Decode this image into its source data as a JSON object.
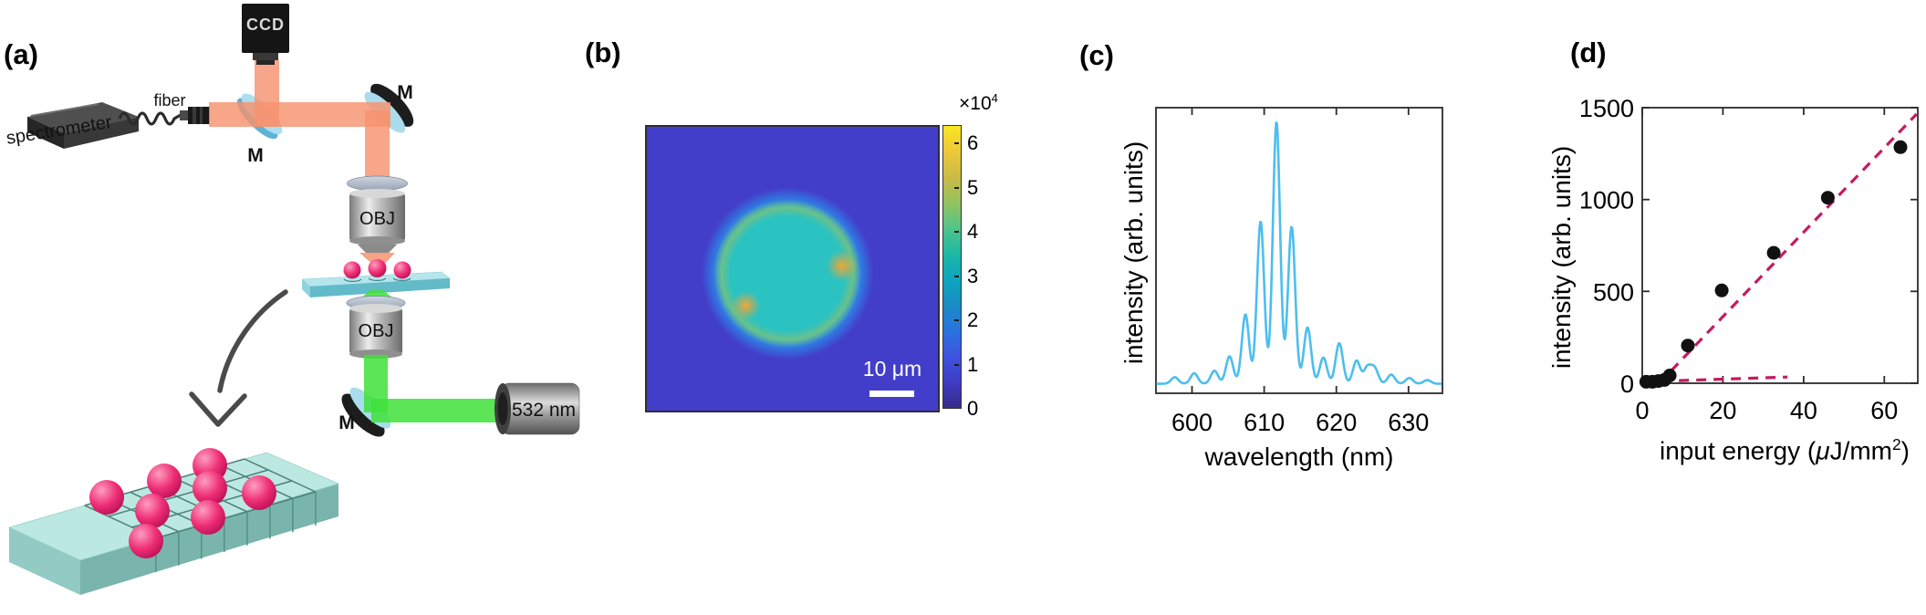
{
  "figure": {
    "background": "#ffffff",
    "panels": {
      "a_label": "(a)",
      "b_label": "(b)",
      "c_label": "(c)",
      "d_label": "(d)"
    }
  },
  "panel_a": {
    "labels": {
      "ccd": "CCD",
      "spectrometer": "spectrometer",
      "fiber": "fiber",
      "mirror_top": "M",
      "mirror_right": "M",
      "mirror_bottom": "M",
      "objective_top": "OBJ",
      "objective_bottom": "OBJ",
      "laser": "532 nm"
    },
    "colors": {
      "emission_beam_red": "#f6936f",
      "excitation_beam_green": "#3fe13a",
      "microsphere_pink": "#ee2e75",
      "substrate_teal": "#bce8e2",
      "focus_glow_orange": "#ffa333"
    }
  },
  "panel_b": {
    "scale_bar_label": "10 μm",
    "colorbar": {
      "multiplier": "×10",
      "exponent": "4",
      "ticks": [
        0,
        1,
        2,
        3,
        4,
        5,
        6
      ],
      "max": 6.42,
      "gradient": [
        "#352a87",
        "#3e3dc3",
        "#3f53e0",
        "#2a72de",
        "#188cc4",
        "#0da5bf",
        "#1cb8a6",
        "#50c48a",
        "#94c25f",
        "#cabb45",
        "#eec83a",
        "#f9e723"
      ]
    },
    "image": {
      "background": "#433ec9",
      "sphere": "#2bc2c2",
      "sphere_edge": "#38b6d2",
      "sphere_glow": "#2f7ce4",
      "ring": "rgba(150,205,70,0.5)",
      "hotspot": "rgba(250,165,45,0.95)"
    }
  },
  "chart_data": [
    {
      "id": "lasing-spectrum",
      "type": "line",
      "title": "",
      "xlabel": "wavelength (nm)",
      "ylabel": "intensity (arb. units)",
      "xlim": [
        595,
        634.7
      ],
      "x_ticks": [
        600,
        610,
        620,
        630
      ],
      "ylim": [
        0,
        1.05
      ],
      "y_ticks": [],
      "grid": false,
      "line_color": "#4dbeee",
      "baseline": 0.012,
      "peak_sigma_nm": 0.5,
      "peaks": [
        {
          "wavelength_nm": 597.6,
          "relative_intensity": 0.025
        },
        {
          "wavelength_nm": 600.3,
          "relative_intensity": 0.04
        },
        {
          "wavelength_nm": 603.1,
          "relative_intensity": 0.05
        },
        {
          "wavelength_nm": 605.2,
          "relative_intensity": 0.105
        },
        {
          "wavelength_nm": 607.4,
          "relative_intensity": 0.265
        },
        {
          "wavelength_nm": 609.5,
          "relative_intensity": 0.62
        },
        {
          "wavelength_nm": 611.7,
          "relative_intensity": 1.0
        },
        {
          "wavelength_nm": 613.8,
          "relative_intensity": 0.6
        },
        {
          "wavelength_nm": 616.0,
          "relative_intensity": 0.215
        },
        {
          "wavelength_nm": 618.2,
          "relative_intensity": 0.1
        },
        {
          "wavelength_nm": 620.4,
          "relative_intensity": 0.155
        },
        {
          "wavelength_nm": 622.8,
          "relative_intensity": 0.088
        },
        {
          "wavelength_nm": 624.3,
          "relative_intensity": 0.062
        },
        {
          "wavelength_nm": 625.3,
          "relative_intensity": 0.058
        },
        {
          "wavelength_nm": 627.6,
          "relative_intensity": 0.035
        },
        {
          "wavelength_nm": 630.1,
          "relative_intensity": 0.022
        },
        {
          "wavelength_nm": 632.6,
          "relative_intensity": 0.014
        }
      ]
    },
    {
      "id": "threshold-curve",
      "type": "scatter",
      "title": "",
      "xlabel_prefix": "input energy (",
      "xlabel_mu": "μ",
      "xlabel_unit": "J/mm",
      "xlabel_sup": "2",
      "xlabel_suffix": ")",
      "ylabel": "intensity (arb. units)",
      "xlim": [
        0,
        68.3
      ],
      "ylim": [
        0,
        1500
      ],
      "x_ticks": [
        0,
        20,
        40,
        60
      ],
      "y_ticks": [
        0,
        500,
        1000,
        1500
      ],
      "grid": false,
      "point_color": "#111111",
      "fit_line_color": "#c41a60",
      "fit_line_style": "dashed",
      "points": [
        [
          1,
          8
        ],
        [
          2.5,
          8
        ],
        [
          4,
          12
        ],
        [
          5.5,
          18
        ],
        [
          6.8,
          42
        ],
        [
          11.3,
          205
        ],
        [
          19.7,
          505
        ],
        [
          32.6,
          710
        ],
        [
          46,
          1010
        ],
        [
          64,
          1285
        ]
      ],
      "fit_lines": [
        {
          "name": "below-threshold-fit",
          "points": [
            [
              0.5,
              8
            ],
            [
              36,
              34
            ]
          ]
        },
        {
          "name": "above-threshold-fit",
          "points": [
            [
              4.2,
              0
            ],
            [
              68,
              1465
            ]
          ]
        }
      ]
    }
  ]
}
